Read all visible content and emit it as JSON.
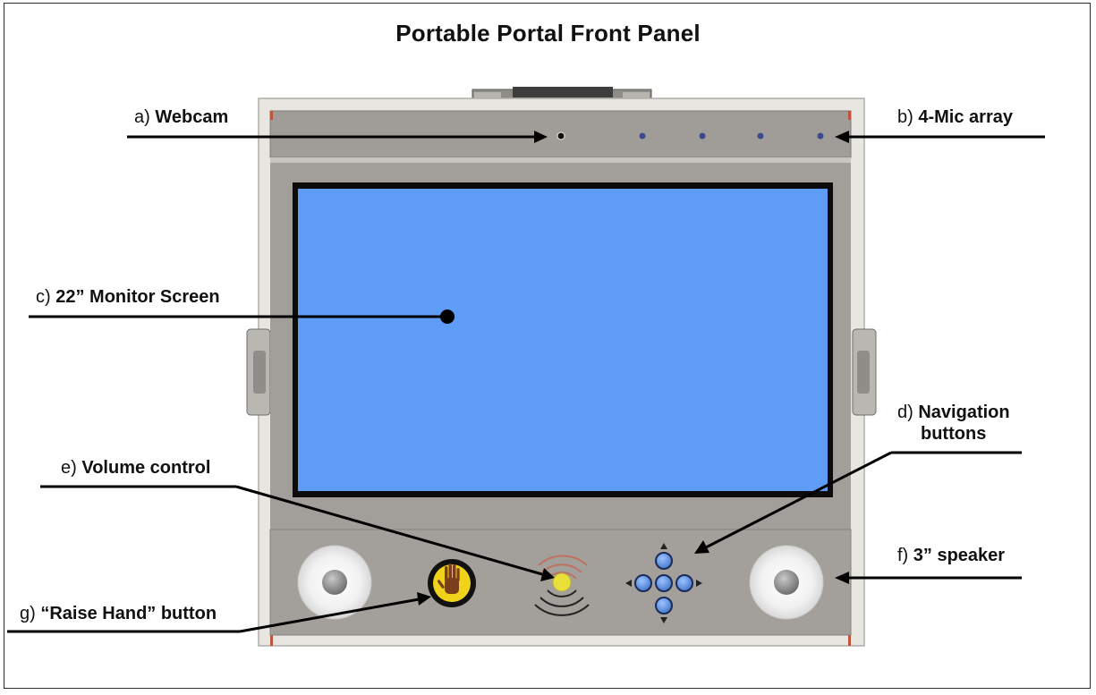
{
  "title": "Portable Portal Front Panel",
  "labels": {
    "webcam": {
      "prefix": "a)",
      "text": "Webcam"
    },
    "mic": {
      "prefix": "b)",
      "text": "4-Mic array"
    },
    "monitor": {
      "prefix": "c)",
      "text": "22” Monitor Screen"
    },
    "navigation": {
      "prefix": "d)",
      "line1": "Navigation",
      "line2": "buttons"
    },
    "volume": {
      "prefix": "e)",
      "text": "Volume control"
    },
    "speaker": {
      "prefix": "f)",
      "text": "3” speaker"
    },
    "raise_hand": {
      "prefix": "g)",
      "text": "“Raise Hand” button"
    }
  },
  "colors": {
    "screen": "#5f9cf6",
    "panel": "#a3a09b",
    "frame_outer": "#e8e6e1",
    "button_blue": "#4f86d8",
    "hand_button": "#f1d21a",
    "volume_led": "#e9e13a"
  }
}
